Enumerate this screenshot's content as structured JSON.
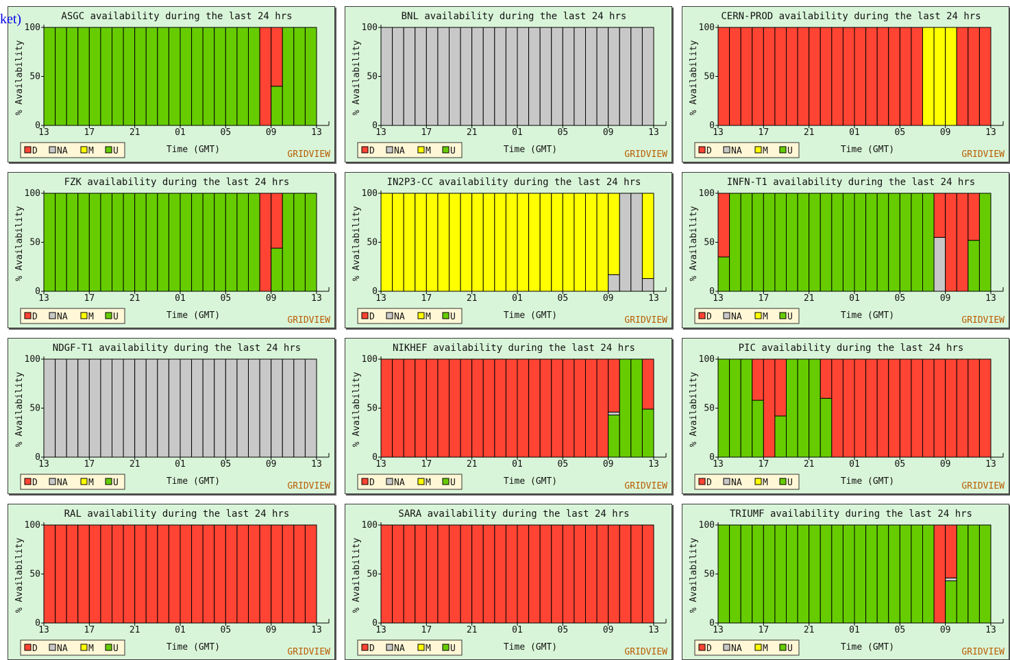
{
  "header_fragment": "ket)",
  "palette": {
    "D": "#ff4433",
    "NA": "#c8c8c8",
    "M": "#ffff00",
    "U": "#66cc00"
  },
  "common": {
    "xlabel": "Time (GMT)",
    "ylabel": "% Availability",
    "brand": "GRIDVIEW",
    "x_ticks": [
      "13",
      "17",
      "21",
      "01",
      "05",
      "09",
      "13"
    ],
    "y_ticks": [
      "0",
      "50",
      "100"
    ],
    "legend": [
      "D",
      "NA",
      "M",
      "U"
    ]
  },
  "chart_data": [
    {
      "type": "bar",
      "title": "ASGC availability during the last 24 hrs",
      "ylim": [
        0,
        100
      ],
      "series": [
        {
          "name": "U",
          "values": [
            100,
            100,
            100,
            100,
            100,
            100,
            100,
            100,
            100,
            100,
            100,
            100,
            100,
            100,
            100,
            100,
            100,
            100,
            100,
            0,
            40,
            100,
            100,
            100
          ]
        },
        {
          "name": "D",
          "values": [
            0,
            0,
            0,
            0,
            0,
            0,
            0,
            0,
            0,
            0,
            0,
            0,
            0,
            0,
            0,
            0,
            0,
            0,
            0,
            100,
            60,
            0,
            0,
            0
          ]
        }
      ]
    },
    {
      "type": "bar",
      "title": "BNL availability during the last 24 hrs",
      "ylim": [
        0,
        100
      ],
      "series": [
        {
          "name": "NA",
          "values": [
            100,
            100,
            100,
            100,
            100,
            100,
            100,
            100,
            100,
            100,
            100,
            100,
            100,
            100,
            100,
            100,
            100,
            100,
            100,
            100,
            100,
            100,
            100,
            100
          ]
        }
      ]
    },
    {
      "type": "bar",
      "title": "CERN-PROD availability during the last 24 hrs",
      "ylim": [
        0,
        100
      ],
      "series": [
        {
          "name": "D",
          "values": [
            100,
            100,
            100,
            100,
            100,
            100,
            100,
            100,
            100,
            100,
            100,
            100,
            100,
            100,
            100,
            100,
            100,
            100,
            0,
            0,
            0,
            100,
            100,
            100
          ]
        },
        {
          "name": "M",
          "values": [
            0,
            0,
            0,
            0,
            0,
            0,
            0,
            0,
            0,
            0,
            0,
            0,
            0,
            0,
            0,
            0,
            0,
            0,
            100,
            100,
            100,
            0,
            0,
            0
          ]
        }
      ]
    },
    {
      "type": "bar",
      "title": "FZK availability during the last 24 hrs",
      "ylim": [
        0,
        100
      ],
      "series": [
        {
          "name": "U",
          "values": [
            100,
            100,
            100,
            100,
            100,
            100,
            100,
            100,
            100,
            100,
            100,
            100,
            100,
            100,
            100,
            100,
            100,
            100,
            100,
            0,
            44,
            100,
            100,
            100
          ]
        },
        {
          "name": "D",
          "values": [
            0,
            0,
            0,
            0,
            0,
            0,
            0,
            0,
            0,
            0,
            0,
            0,
            0,
            0,
            0,
            0,
            0,
            0,
            0,
            100,
            56,
            0,
            0,
            0
          ]
        }
      ]
    },
    {
      "type": "bar",
      "title": "IN2P3-CC availability during the last 24 hrs",
      "ylim": [
        0,
        100
      ],
      "series": [
        {
          "name": "M",
          "values": [
            100,
            100,
            100,
            100,
            100,
            100,
            100,
            100,
            100,
            100,
            100,
            100,
            100,
            100,
            100,
            100,
            100,
            100,
            100,
            100,
            83,
            0,
            0,
            87
          ]
        },
        {
          "name": "NA",
          "values": [
            0,
            0,
            0,
            0,
            0,
            0,
            0,
            0,
            0,
            0,
            0,
            0,
            0,
            0,
            0,
            0,
            0,
            0,
            0,
            0,
            17,
            100,
            100,
            13
          ]
        }
      ]
    },
    {
      "type": "bar",
      "title": "INFN-T1 availability during the last 24 hrs",
      "ylim": [
        0,
        100
      ],
      "series": [
        {
          "name": "U",
          "values": [
            35,
            100,
            100,
            100,
            100,
            100,
            100,
            100,
            100,
            100,
            100,
            100,
            100,
            100,
            100,
            100,
            100,
            100,
            100,
            0,
            0,
            0,
            52,
            100
          ]
        },
        {
          "name": "NA",
          "values": [
            0,
            0,
            0,
            0,
            0,
            0,
            0,
            0,
            0,
            0,
            0,
            0,
            0,
            0,
            0,
            0,
            0,
            0,
            0,
            55,
            0,
            0,
            0,
            0
          ]
        },
        {
          "name": "D",
          "values": [
            65,
            0,
            0,
            0,
            0,
            0,
            0,
            0,
            0,
            0,
            0,
            0,
            0,
            0,
            0,
            0,
            0,
            0,
            0,
            45,
            100,
            100,
            48,
            0
          ]
        }
      ]
    },
    {
      "type": "bar",
      "title": "NDGF-T1 availability during the last 24 hrs",
      "ylim": [
        0,
        100
      ],
      "series": [
        {
          "name": "NA",
          "values": [
            100,
            100,
            100,
            100,
            100,
            100,
            100,
            100,
            100,
            100,
            100,
            100,
            100,
            100,
            100,
            100,
            100,
            100,
            100,
            100,
            100,
            100,
            100,
            100
          ]
        }
      ]
    },
    {
      "type": "bar",
      "title": "NIKHEF availability during the last 24 hrs",
      "ylim": [
        0,
        100
      ],
      "series": [
        {
          "name": "U",
          "values": [
            0,
            0,
            0,
            0,
            0,
            0,
            0,
            0,
            0,
            0,
            0,
            0,
            0,
            0,
            0,
            0,
            0,
            0,
            0,
            0,
            43,
            100,
            100,
            49
          ]
        },
        {
          "name": "NA",
          "values": [
            0,
            0,
            0,
            0,
            0,
            0,
            0,
            0,
            0,
            0,
            0,
            0,
            0,
            0,
            0,
            0,
            0,
            0,
            0,
            0,
            3,
            0,
            0,
            0
          ]
        },
        {
          "name": "D",
          "values": [
            100,
            100,
            100,
            100,
            100,
            100,
            100,
            100,
            100,
            100,
            100,
            100,
            100,
            100,
            100,
            100,
            100,
            100,
            100,
            100,
            54,
            0,
            0,
            51
          ]
        }
      ]
    },
    {
      "type": "bar",
      "title": "PIC availability during the last 24 hrs",
      "ylim": [
        0,
        100
      ],
      "series": [
        {
          "name": "U",
          "values": [
            100,
            100,
            100,
            58,
            0,
            42,
            100,
            100,
            100,
            60,
            0,
            0,
            0,
            0,
            0,
            0,
            0,
            0,
            0,
            0,
            0,
            0,
            0,
            0
          ]
        },
        {
          "name": "D",
          "values": [
            0,
            0,
            0,
            42,
            100,
            58,
            0,
            0,
            0,
            40,
            100,
            100,
            100,
            100,
            100,
            100,
            100,
            100,
            100,
            100,
            100,
            100,
            100,
            100
          ]
        }
      ]
    },
    {
      "type": "bar",
      "title": "RAL availability during the last 24 hrs",
      "ylim": [
        0,
        100
      ],
      "series": [
        {
          "name": "D",
          "values": [
            100,
            100,
            100,
            100,
            100,
            100,
            100,
            100,
            100,
            100,
            100,
            100,
            100,
            100,
            100,
            100,
            100,
            100,
            100,
            100,
            100,
            100,
            100,
            100
          ]
        }
      ]
    },
    {
      "type": "bar",
      "title": "SARA availability during the last 24 hrs",
      "ylim": [
        0,
        100
      ],
      "series": [
        {
          "name": "D",
          "values": [
            100,
            100,
            100,
            100,
            100,
            100,
            100,
            100,
            100,
            100,
            100,
            100,
            100,
            100,
            100,
            100,
            100,
            100,
            100,
            100,
            100,
            100,
            100,
            100
          ]
        }
      ]
    },
    {
      "type": "bar",
      "title": "TRIUMF availability during the last 24 hrs",
      "ylim": [
        0,
        100
      ],
      "series": [
        {
          "name": "U",
          "values": [
            100,
            100,
            100,
            100,
            100,
            100,
            100,
            100,
            100,
            100,
            100,
            100,
            100,
            100,
            100,
            100,
            100,
            100,
            100,
            0,
            43,
            100,
            100,
            100
          ]
        },
        {
          "name": "NA",
          "values": [
            0,
            0,
            0,
            0,
            0,
            0,
            0,
            0,
            0,
            0,
            0,
            0,
            0,
            0,
            0,
            0,
            0,
            0,
            0,
            0,
            3,
            0,
            0,
            0
          ]
        },
        {
          "name": "D",
          "values": [
            0,
            0,
            0,
            0,
            0,
            0,
            0,
            0,
            0,
            0,
            0,
            0,
            0,
            0,
            0,
            0,
            0,
            0,
            0,
            100,
            54,
            0,
            0,
            0
          ]
        }
      ]
    }
  ]
}
